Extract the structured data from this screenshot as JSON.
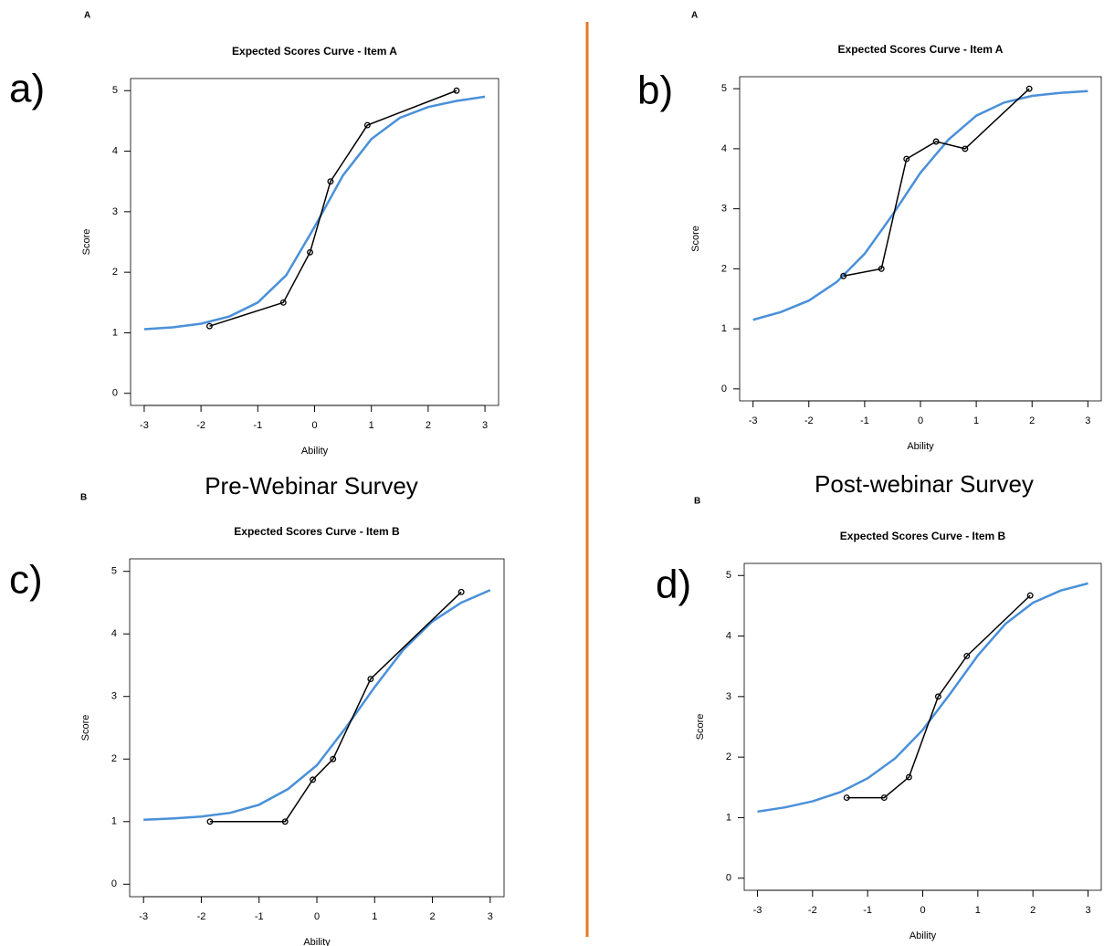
{
  "captions": [
    "Pre-Webinar Survey",
    "Post-webinar Survey"
  ],
  "chart_data": [
    {
      "type": "line",
      "corner_label": "A",
      "panel_label": "a)",
      "title": "Expected Scores Curve - Item  A",
      "xlabel": "Ability",
      "ylabel": "Score",
      "xlim": [
        -3.24,
        3.24
      ],
      "ylim": [
        -0.2,
        5.2
      ],
      "xticks": [
        -3,
        -2,
        -1,
        0,
        1,
        2,
        3
      ],
      "yticks": [
        0,
        1,
        2,
        3,
        4,
        5
      ],
      "series": [
        {
          "color": "#4a90d9",
          "markers": false,
          "x": [
            -3,
            -2.5,
            -2,
            -1.5,
            -1,
            -0.5,
            0,
            0.5,
            1,
            1.5,
            2,
            2.5,
            3
          ],
          "values": [
            1.06,
            1.09,
            1.15,
            1.27,
            1.5,
            1.95,
            2.75,
            3.6,
            4.2,
            4.55,
            4.73,
            4.83,
            4.9
          ]
        },
        {
          "color": "#000000",
          "markers": true,
          "x": [
            -1.85,
            -0.55,
            -0.08,
            0.28,
            0.93,
            2.5
          ],
          "values": [
            1.11,
            1.5,
            2.33,
            3.5,
            4.43,
            5.0
          ]
        }
      ]
    },
    {
      "type": "line",
      "corner_label": "A",
      "panel_label": "b)",
      "title": "Expected Scores Curve - Item  A",
      "xlabel": "Ability",
      "ylabel": "Score",
      "xlim": [
        -3.24,
        3.24
      ],
      "ylim": [
        -0.2,
        5.2
      ],
      "xticks": [
        -3,
        -2,
        -1,
        0,
        1,
        2,
        3
      ],
      "yticks": [
        0,
        1,
        2,
        3,
        4,
        5
      ],
      "series": [
        {
          "color": "#4a90d9",
          "markers": false,
          "x": [
            -3,
            -2.5,
            -2,
            -1.5,
            -1,
            -0.5,
            0,
            0.5,
            1,
            1.5,
            2,
            2.5,
            3
          ],
          "values": [
            1.15,
            1.28,
            1.47,
            1.78,
            2.25,
            2.9,
            3.6,
            4.15,
            4.55,
            4.77,
            4.88,
            4.93,
            4.96
          ]
        },
        {
          "color": "#000000",
          "markers": true,
          "x": [
            -1.38,
            -0.7,
            -0.25,
            0.28,
            0.8,
            1.95
          ],
          "values": [
            1.88,
            2.0,
            3.83,
            4.12,
            4.0,
            5.0
          ]
        }
      ]
    },
    {
      "type": "line",
      "corner_label": "B",
      "panel_label": "c)",
      "title": "Expected Scores Curve - Item  B",
      "xlabel": "Ability",
      "ylabel": "Score",
      "xlim": [
        -3.24,
        3.24
      ],
      "ylim": [
        -0.2,
        5.2
      ],
      "xticks": [
        -3,
        -2,
        -1,
        0,
        1,
        2,
        3
      ],
      "yticks": [
        0,
        1,
        2,
        3,
        4,
        5
      ],
      "series": [
        {
          "color": "#4a90d9",
          "markers": false,
          "x": [
            -3,
            -2.5,
            -2,
            -1.5,
            -1,
            -0.5,
            0,
            0.5,
            1,
            1.5,
            2,
            2.5,
            3
          ],
          "values": [
            1.03,
            1.05,
            1.08,
            1.14,
            1.27,
            1.52,
            1.9,
            2.5,
            3.15,
            3.75,
            4.2,
            4.5,
            4.7
          ]
        },
        {
          "color": "#000000",
          "markers": true,
          "x": [
            -1.85,
            -0.55,
            -0.07,
            0.28,
            0.93,
            2.5
          ],
          "values": [
            1.0,
            1.0,
            1.67,
            2.0,
            3.28,
            4.67
          ]
        }
      ]
    },
    {
      "type": "line",
      "corner_label": "B",
      "panel_label": "d)",
      "title": "Expected Scores Curve - Item  B",
      "xlabel": "Ability",
      "ylabel": "Score",
      "xlim": [
        -3.24,
        3.24
      ],
      "ylim": [
        -0.2,
        5.2
      ],
      "xticks": [
        -3,
        -2,
        -1,
        0,
        1,
        2,
        3
      ],
      "yticks": [
        0,
        1,
        2,
        3,
        4,
        5
      ],
      "series": [
        {
          "color": "#4a90d9",
          "markers": false,
          "x": [
            -3,
            -2.5,
            -2,
            -1.5,
            -1,
            -0.5,
            0,
            0.5,
            1,
            1.5,
            2,
            2.5,
            3
          ],
          "values": [
            1.1,
            1.17,
            1.27,
            1.42,
            1.65,
            1.98,
            2.45,
            3.05,
            3.68,
            4.2,
            4.55,
            4.75,
            4.87
          ]
        },
        {
          "color": "#000000",
          "markers": true,
          "x": [
            -1.38,
            -0.7,
            -0.25,
            0.28,
            0.8,
            1.95
          ],
          "values": [
            1.33,
            1.33,
            1.67,
            3.0,
            3.67,
            4.67
          ]
        }
      ]
    }
  ]
}
